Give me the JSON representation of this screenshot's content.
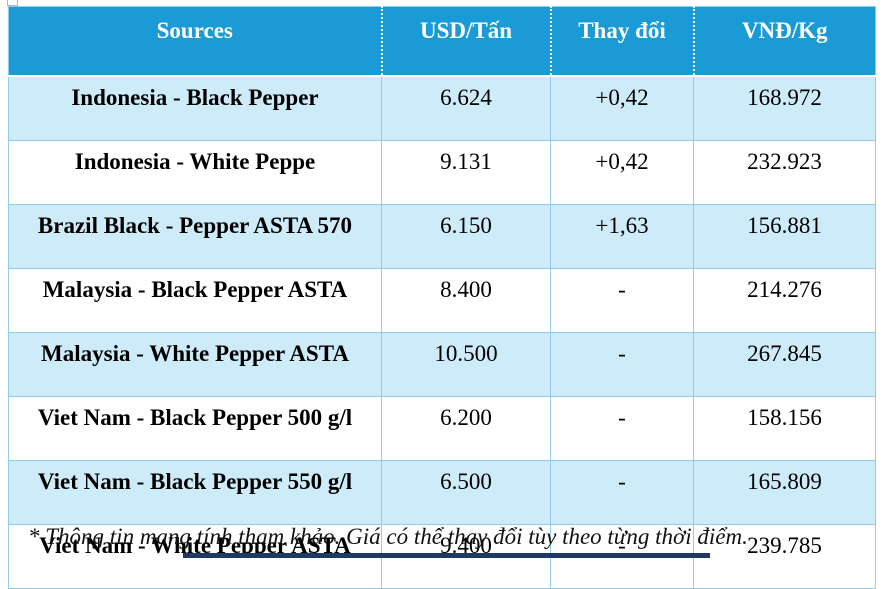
{
  "table": {
    "columns": [
      {
        "label": "Sources"
      },
      {
        "label": "USD/Tấn"
      },
      {
        "label": "Thay đổi"
      },
      {
        "label": "VNĐ/Kg"
      }
    ],
    "rows": [
      {
        "source": "Indonesia - Black Pepper",
        "usd": "6.624",
        "change": "+0,42",
        "vnd": "168.972"
      },
      {
        "source": "Indonesia - White Peppe",
        "usd": "9.131",
        "change": "+0,42",
        "vnd": "232.923"
      },
      {
        "source": "Brazil Black - Pepper ASTA 570",
        "usd": "6.150",
        "change": "+1,63",
        "vnd": "156.881"
      },
      {
        "source": "Malaysia - Black Pepper ASTA",
        "usd": "8.400",
        "change": "-",
        "vnd": "214.276"
      },
      {
        "source": "Malaysia - White Pepper ASTA",
        "usd": "10.500",
        "change": "-",
        "vnd": "267.845"
      },
      {
        "source": "Viet Nam - Black Pepper 500 g/l",
        "usd": "6.200",
        "change": "-",
        "vnd": "158.156"
      },
      {
        "source": "Viet Nam - Black Pepper 550 g/l",
        "usd": "6.500",
        "change": "-",
        "vnd": "165.809"
      },
      {
        "source": "Viet Nam - White Pepper ASTA",
        "usd": "9.400",
        "change": "-",
        "vnd": "239.785"
      }
    ]
  },
  "footnote": "* Thông tin mang tính tham khảo. Giá có thể thay đổi tùy theo từng thời điểm.",
  "colors": {
    "header_bg": "#1B9BD5",
    "row_shaded": "#CDEBF8",
    "border": "#8FCDEA",
    "header_text": "#FFFFFF",
    "body_text": "#000000",
    "bottom_bar": "#1F3864"
  }
}
